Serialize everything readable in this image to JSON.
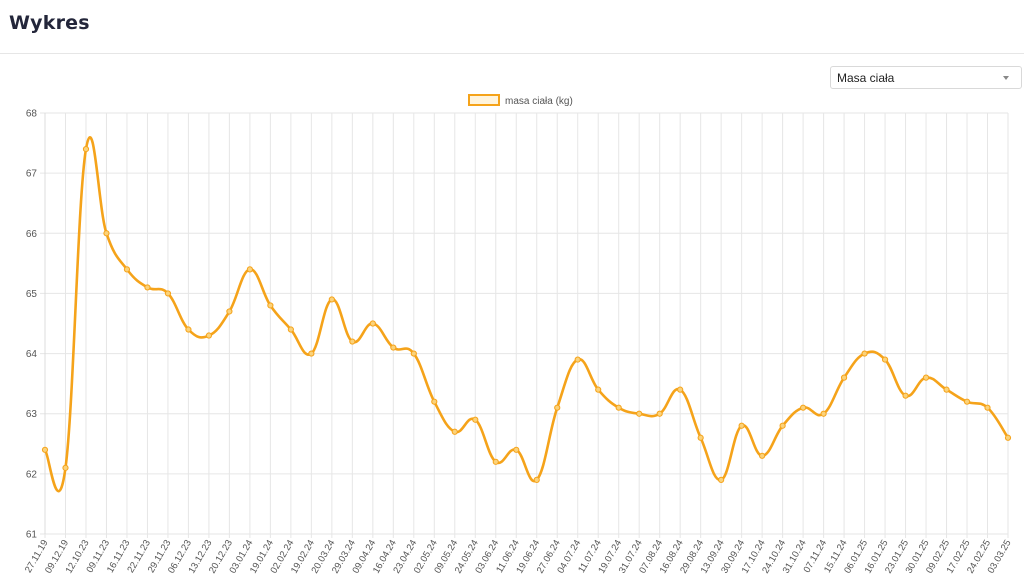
{
  "header": {
    "title": "Wykres"
  },
  "series_select": {
    "selected": "Masa ciała"
  },
  "chart_data": {
    "type": "line",
    "title": "",
    "xlabel": "",
    "ylabel": "",
    "legend_position": "top",
    "grid": true,
    "ylim": [
      61,
      68
    ],
    "yticks": [
      61,
      62,
      63,
      64,
      65,
      66,
      67,
      68
    ],
    "x": [
      "27.11.19",
      "09.12.19",
      "12.10.23",
      "09.11.23",
      "16.11.23",
      "22.11.23",
      "29.11.23",
      "06.12.23",
      "13.12.23",
      "20.12.23",
      "03.01.24",
      "19.01.24",
      "02.02.24",
      "19.02.24",
      "20.03.24",
      "29.03.24",
      "09.04.24",
      "16.04.24",
      "23.04.24",
      "02.05.24",
      "09.05.24",
      "24.05.24",
      "03.06.24",
      "11.06.24",
      "19.06.24",
      "27.06.24",
      "04.07.24",
      "11.07.24",
      "19.07.24",
      "31.07.24",
      "07.08.24",
      "16.08.24",
      "29.08.24",
      "13.09.24",
      "30.09.24",
      "17.10.24",
      "24.10.24",
      "31.10.24",
      "07.11.24",
      "15.11.24",
      "06.01.25",
      "16.01.25",
      "23.01.25",
      "30.01.25",
      "09.02.25",
      "17.02.25",
      "24.02.25",
      "03.03.25"
    ],
    "series": [
      {
        "name": "masa ciała (kg)",
        "color": "#f5a31a",
        "values": [
          62.4,
          62.1,
          67.4,
          66.0,
          65.4,
          65.1,
          65.0,
          64.4,
          64.3,
          64.7,
          65.4,
          64.8,
          64.4,
          64.0,
          64.9,
          64.2,
          64.5,
          64.1,
          64.0,
          63.2,
          62.7,
          62.9,
          62.2,
          62.4,
          61.9,
          63.1,
          63.9,
          63.4,
          63.1,
          63.0,
          63.0,
          63.4,
          62.6,
          61.9,
          62.8,
          62.3,
          62.8,
          63.1,
          63.0,
          63.6,
          64.0,
          63.9,
          63.3,
          63.6,
          63.4,
          63.2,
          63.1,
          62.6
        ]
      }
    ]
  }
}
